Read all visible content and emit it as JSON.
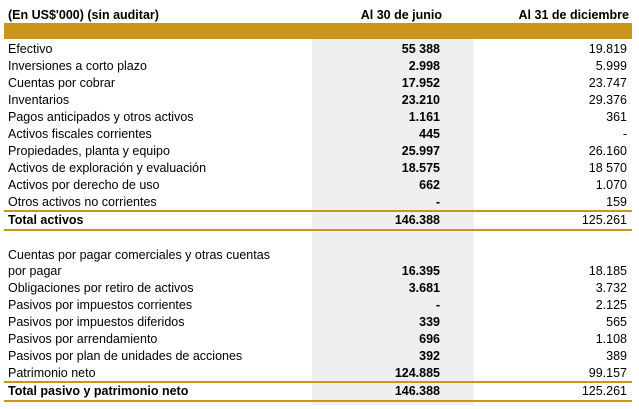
{
  "header": {
    "unit_label": "(En US$'000) (sin auditar)",
    "col1": "Al 30 de junio",
    "col2": "Al 31 de diciembre"
  },
  "assets": [
    {
      "label": "Efectivo",
      "v1": "55 388",
      "v2": "19.819"
    },
    {
      "label": "Inversiones a corto plazo",
      "v1": "2.998",
      "v2": "5.999"
    },
    {
      "label": "Cuentas por cobrar",
      "v1": "17.952",
      "v2": "23.747"
    },
    {
      "label": "Inventarios",
      "v1": "23.210",
      "v2": "29.376"
    },
    {
      "label": "Pagos anticipados y otros activos",
      "v1": "1.161",
      "v2": "361"
    },
    {
      "label": "Activos fiscales corrientes",
      "v1": "445",
      "v2": "-"
    },
    {
      "label": "Propiedades, planta y equipo",
      "v1": "25.997",
      "v2": "26.160"
    },
    {
      "label": "Activos de exploración y evaluación",
      "v1": "18.575",
      "v2": "18 570"
    },
    {
      "label": "Activos por derecho de uso",
      "v1": "662",
      "v2": "1.070"
    },
    {
      "label": "Otros activos no corrientes",
      "v1": "-",
      "v2": "159"
    }
  ],
  "total_assets": {
    "label": "Total activos",
    "v1": "146.388",
    "v2": "125.261"
  },
  "liabilities": [
    {
      "label": "Cuentas por pagar comerciales y otras cuentas",
      "label2": "por pagar",
      "v1": "16.395",
      "v2": "18.185"
    },
    {
      "label": "Obligaciones por retiro de activos",
      "v1": "3.681",
      "v2": "3.732"
    },
    {
      "label": "Pasivos por impuestos corrientes",
      "v1": "-",
      "v2": "2.125"
    },
    {
      "label": "Pasivos por impuestos diferidos",
      "v1": "339",
      "v2": "565"
    },
    {
      "label": "Pasivos por arrendamiento",
      "v1": "696",
      "v2": "1.108"
    },
    {
      "label": "Pasivos por plan de unidades de acciones",
      "v1": "392",
      "v2": "389"
    },
    {
      "label": "Patrimonio neto",
      "v1": "124.885",
      "v2": "99.157"
    }
  ],
  "total_liabilities": {
    "label": "Total pasivo y patrimonio neto",
    "v1": "146.388",
    "v2": "125.261"
  }
}
